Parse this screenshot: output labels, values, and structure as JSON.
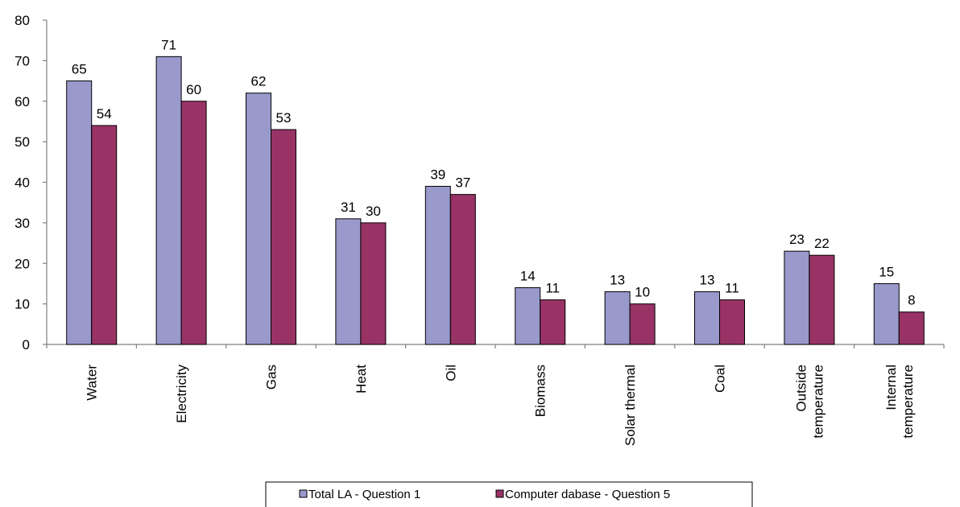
{
  "chart_data": {
    "type": "bar",
    "categories": [
      "Water",
      "Electricity",
      "Gas",
      "Heat",
      "Oil",
      "Biomass",
      "Solar thermal",
      "Coal",
      "Outside temperature",
      "Internal temperature"
    ],
    "category_lines": [
      [
        "Water"
      ],
      [
        "Electricity"
      ],
      [
        "Gas"
      ],
      [
        "Heat"
      ],
      [
        "Oil"
      ],
      [
        "Biomass"
      ],
      [
        "Solar thermal"
      ],
      [
        "Coal"
      ],
      [
        "Outside",
        "temperature"
      ],
      [
        "Internal",
        "temperature"
      ]
    ],
    "series": [
      {
        "name": "Total LA - Question 1",
        "values": [
          65,
          71,
          62,
          31,
          39,
          14,
          13,
          13,
          23,
          15
        ],
        "color": "#9999cc"
      },
      {
        "name": "Computer dabase - Question 5",
        "values": [
          54,
          60,
          53,
          30,
          37,
          11,
          10,
          11,
          22,
          8
        ],
        "color": "#993366"
      }
    ],
    "ylim": [
      0,
      80
    ],
    "yticks": [
      0,
      10,
      20,
      30,
      40,
      50,
      60,
      70,
      80
    ],
    "grid": false,
    "legend": "bottom",
    "data_labels": true
  }
}
